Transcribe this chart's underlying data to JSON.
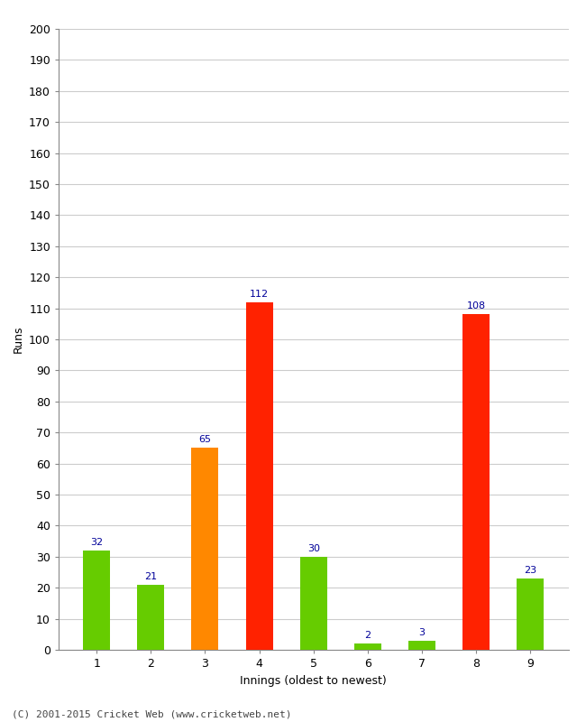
{
  "categories": [
    "1",
    "2",
    "3",
    "4",
    "5",
    "6",
    "7",
    "8",
    "9"
  ],
  "values": [
    32,
    21,
    65,
    112,
    30,
    2,
    3,
    108,
    23
  ],
  "bar_colors": [
    "#66cc00",
    "#66cc00",
    "#ff8800",
    "#ff2200",
    "#66cc00",
    "#66cc00",
    "#66cc00",
    "#ff2200",
    "#66cc00"
  ],
  "label_values": [
    "32",
    "21",
    "65",
    "112",
    "30",
    "2",
    "3",
    "108",
    "23"
  ],
  "xlabel": "Innings (oldest to newest)",
  "ylabel": "Runs",
  "ylim": [
    0,
    200
  ],
  "yticks": [
    0,
    10,
    20,
    30,
    40,
    50,
    60,
    70,
    80,
    90,
    100,
    110,
    120,
    130,
    140,
    150,
    160,
    170,
    180,
    190,
    200
  ],
  "label_color": "#000099",
  "label_fontsize": 8,
  "axis_label_fontsize": 9,
  "tick_fontsize": 9,
  "footer_text": "(C) 2001-2015 Cricket Web (www.cricketweb.net)",
  "footer_fontsize": 8,
  "background_color": "#ffffff",
  "grid_color": "#cccccc",
  "bar_width": 0.5
}
